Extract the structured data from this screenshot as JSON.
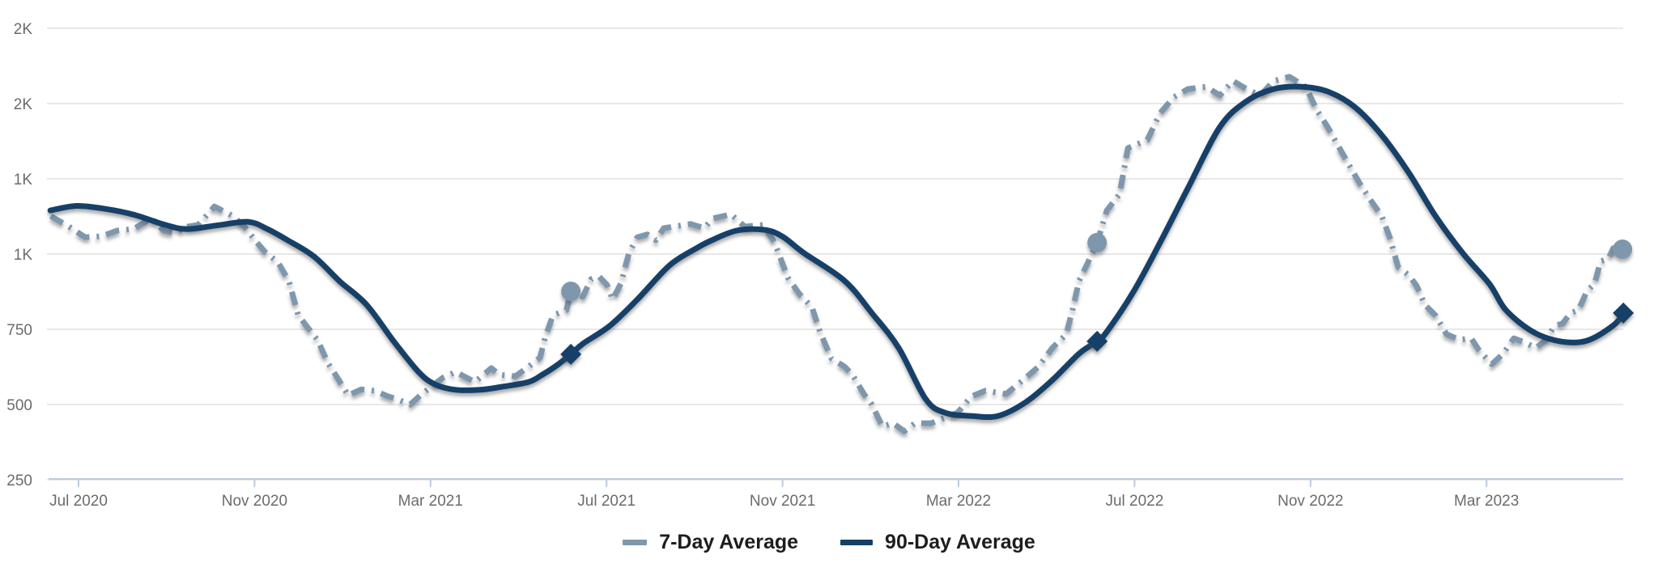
{
  "colors": {
    "background": "#FFFFFF",
    "series_7day": "#7E97AD",
    "series_90day": "#143F68",
    "gridline": "#E8E8E8",
    "axis_line": "#BCCBDB",
    "tick_mark": "#BCCBDB",
    "axis_text": "#6B6B6B",
    "legend_text": "#1D1D1D"
  },
  "chart_data": {
    "type": "line",
    "title": "",
    "grid": "horizontal-only",
    "legend_position": "bottom-center",
    "x_axis": {
      "unit": "months_since_jun_2020",
      "range": [
        0.3,
        36.15
      ],
      "ticks": [
        {
          "m": 1,
          "label": "Jul 2020"
        },
        {
          "m": 5,
          "label": "Nov 2020"
        },
        {
          "m": 9,
          "label": "Mar 2021"
        },
        {
          "m": 13,
          "label": "Jul 2021"
        },
        {
          "m": 17,
          "label": "Nov 2021"
        },
        {
          "m": 21,
          "label": "Mar 2022"
        },
        {
          "m": 25,
          "label": "Jul 2022"
        },
        {
          "m": 29,
          "label": "Nov 2022"
        },
        {
          "m": 33,
          "label": "Mar 2023"
        }
      ]
    },
    "y_axis": {
      "range": [
        250,
        1750
      ],
      "gridline_values": [
        1750,
        1500,
        1250,
        1000,
        750,
        500,
        250
      ],
      "tick_labels": [
        "2K",
        "2K",
        "1K",
        "1K",
        "750",
        "500",
        "250"
      ]
    },
    "series": [
      {
        "name": "7-Day Average",
        "style": "dashed",
        "color": "#7E97AD",
        "marker": "circle",
        "points": [
          [
            0.37,
            1126
          ],
          [
            0.78,
            1091
          ],
          [
            1.15,
            1056
          ],
          [
            1.52,
            1059
          ],
          [
            1.88,
            1078
          ],
          [
            2.25,
            1083
          ],
          [
            2.66,
            1119
          ],
          [
            2.93,
            1078
          ],
          [
            3.17,
            1070
          ],
          [
            3.48,
            1091
          ],
          [
            3.72,
            1097
          ],
          [
            4.09,
            1158
          ],
          [
            4.51,
            1126
          ],
          [
            4.77,
            1091
          ],
          [
            5.01,
            1046
          ],
          [
            5.25,
            1005
          ],
          [
            5.53,
            973
          ],
          [
            5.78,
            911
          ],
          [
            5.99,
            798
          ],
          [
            6.21,
            755
          ],
          [
            6.43,
            715
          ],
          [
            6.67,
            637
          ],
          [
            6.91,
            583
          ],
          [
            7.13,
            530
          ],
          [
            7.42,
            550
          ],
          [
            7.73,
            546
          ],
          [
            8.02,
            528
          ],
          [
            8.23,
            518
          ],
          [
            8.54,
            500
          ],
          [
            8.78,
            532
          ],
          [
            9.28,
            589
          ],
          [
            9.57,
            608
          ],
          [
            10.01,
            575
          ],
          [
            10.38,
            621
          ],
          [
            10.57,
            599
          ],
          [
            10.93,
            594
          ],
          [
            11.23,
            626
          ],
          [
            11.49,
            656
          ],
          [
            11.6,
            720
          ],
          [
            11.78,
            796
          ],
          [
            12.09,
            814
          ],
          [
            12.19,
            876
          ],
          [
            12.46,
            858
          ],
          [
            12.65,
            917
          ],
          [
            12.83,
            925
          ],
          [
            13.01,
            898
          ],
          [
            13.14,
            849
          ],
          [
            13.33,
            903
          ],
          [
            13.51,
            1003
          ],
          [
            13.7,
            1056
          ],
          [
            13.93,
            1065
          ],
          [
            14.12,
            1046
          ],
          [
            14.3,
            1086
          ],
          [
            14.91,
            1100
          ],
          [
            15.22,
            1086
          ],
          [
            15.41,
            1118
          ],
          [
            15.83,
            1132
          ],
          [
            16.14,
            1091
          ],
          [
            16.57,
            1097
          ],
          [
            16.82,
            1038
          ],
          [
            17.12,
            922
          ],
          [
            17.38,
            868
          ],
          [
            17.67,
            823
          ],
          [
            17.85,
            742
          ],
          [
            18.11,
            653
          ],
          [
            18.41,
            626
          ],
          [
            18.59,
            599
          ],
          [
            18.85,
            535
          ],
          [
            19.03,
            500
          ],
          [
            19.27,
            427
          ],
          [
            19.51,
            438
          ],
          [
            19.77,
            411
          ],
          [
            20.01,
            438
          ],
          [
            20.38,
            438
          ],
          [
            20.98,
            473
          ],
          [
            21.29,
            527
          ],
          [
            21.61,
            546
          ],
          [
            22.08,
            535
          ],
          [
            22.53,
            589
          ],
          [
            22.82,
            626
          ],
          [
            23.13,
            688
          ],
          [
            23.45,
            734
          ],
          [
            23.6,
            820
          ],
          [
            23.74,
            911
          ],
          [
            23.92,
            965
          ],
          [
            24.15,
            1038
          ],
          [
            24.37,
            1145
          ],
          [
            24.66,
            1199
          ],
          [
            24.85,
            1352
          ],
          [
            25.29,
            1379
          ],
          [
            25.58,
            1468
          ],
          [
            25.9,
            1522
          ],
          [
            26.21,
            1548
          ],
          [
            26.63,
            1556
          ],
          [
            26.94,
            1527
          ],
          [
            27.24,
            1575
          ],
          [
            27.55,
            1548
          ],
          [
            27.86,
            1527
          ],
          [
            28.16,
            1575
          ],
          [
            28.52,
            1589
          ],
          [
            28.89,
            1556
          ],
          [
            29.15,
            1476
          ],
          [
            29.39,
            1422
          ],
          [
            29.7,
            1341
          ],
          [
            30.12,
            1234
          ],
          [
            30.36,
            1180
          ],
          [
            30.62,
            1126
          ],
          [
            30.8,
            1056
          ],
          [
            30.99,
            957
          ],
          [
            31.23,
            930
          ],
          [
            31.41,
            895
          ],
          [
            31.6,
            831
          ],
          [
            31.84,
            796
          ],
          [
            32.09,
            734
          ],
          [
            32.39,
            715
          ],
          [
            32.65,
            720
          ],
          [
            32.83,
            680
          ],
          [
            33.12,
            634
          ],
          [
            33.38,
            669
          ],
          [
            33.62,
            720
          ],
          [
            33.86,
            707
          ],
          [
            34.12,
            688
          ],
          [
            34.36,
            715
          ],
          [
            34.54,
            761
          ],
          [
            34.73,
            769
          ],
          [
            34.91,
            804
          ],
          [
            35.09,
            814
          ],
          [
            35.28,
            876
          ],
          [
            35.46,
            903
          ],
          [
            35.59,
            976
          ],
          [
            35.77,
            984
          ],
          [
            35.88,
            1019
          ],
          [
            36.09,
            1016
          ]
        ]
      },
      {
        "name": "90-Day Average",
        "style": "solid",
        "color": "#143F68",
        "marker": "diamond",
        "points": [
          [
            0.36,
            1145
          ],
          [
            0.96,
            1160
          ],
          [
            1.61,
            1150
          ],
          [
            2.25,
            1131
          ],
          [
            2.99,
            1096
          ],
          [
            3.48,
            1083
          ],
          [
            4.18,
            1096
          ],
          [
            4.86,
            1107
          ],
          [
            5.29,
            1083
          ],
          [
            5.75,
            1046
          ],
          [
            6.35,
            992
          ],
          [
            6.94,
            909
          ],
          [
            7.55,
            831
          ],
          [
            8.18,
            707
          ],
          [
            8.73,
            608
          ],
          [
            9.1,
            567
          ],
          [
            9.57,
            549
          ],
          [
            10.13,
            549
          ],
          [
            10.62,
            559
          ],
          [
            11.23,
            575
          ],
          [
            11.54,
            599
          ],
          [
            11.86,
            629
          ],
          [
            12.19,
            667
          ],
          [
            12.46,
            702
          ],
          [
            13.07,
            761
          ],
          [
            13.7,
            849
          ],
          [
            14.43,
            962
          ],
          [
            15.04,
            1019
          ],
          [
            15.35,
            1043
          ],
          [
            15.96,
            1078
          ],
          [
            16.6,
            1080
          ],
          [
            17.0,
            1058
          ],
          [
            17.49,
            1003
          ],
          [
            18.41,
            911
          ],
          [
            19.03,
            804
          ],
          [
            19.64,
            688
          ],
          [
            20.25,
            519
          ],
          [
            20.69,
            473
          ],
          [
            21.29,
            462
          ],
          [
            21.9,
            462
          ],
          [
            22.53,
            508
          ],
          [
            23.13,
            581
          ],
          [
            23.74,
            669
          ],
          [
            24.15,
            710
          ],
          [
            24.37,
            742
          ],
          [
            24.98,
            876
          ],
          [
            25.58,
            1038
          ],
          [
            26.21,
            1218
          ],
          [
            26.94,
            1422
          ],
          [
            27.55,
            1508
          ],
          [
            28.16,
            1548
          ],
          [
            28.78,
            1556
          ],
          [
            29.39,
            1540
          ],
          [
            30.0,
            1489
          ],
          [
            30.62,
            1395
          ],
          [
            31.23,
            1271
          ],
          [
            31.84,
            1126
          ],
          [
            32.46,
            1003
          ],
          [
            33.07,
            900
          ],
          [
            33.44,
            814
          ],
          [
            34.05,
            742
          ],
          [
            34.67,
            710
          ],
          [
            35.28,
            712
          ],
          [
            35.89,
            764
          ],
          [
            36.11,
            804
          ]
        ]
      }
    ],
    "markers": [
      {
        "series": "7-Day Average",
        "shape": "circle",
        "m": 12.19,
        "v": 876
      },
      {
        "series": "7-Day Average",
        "shape": "circle",
        "m": 24.15,
        "v": 1038
      },
      {
        "series": "7-Day Average",
        "shape": "circle",
        "m": 36.09,
        "v": 1016
      },
      {
        "series": "90-Day Average",
        "shape": "diamond",
        "m": 12.19,
        "v": 667
      },
      {
        "series": "90-Day Average",
        "shape": "diamond",
        "m": 24.15,
        "v": 710
      },
      {
        "series": "90-Day Average",
        "shape": "diamond",
        "m": 36.11,
        "v": 804
      }
    ]
  },
  "legend": {
    "items": [
      {
        "label": "7-Day Average"
      },
      {
        "label": "90-Day Average"
      }
    ]
  }
}
